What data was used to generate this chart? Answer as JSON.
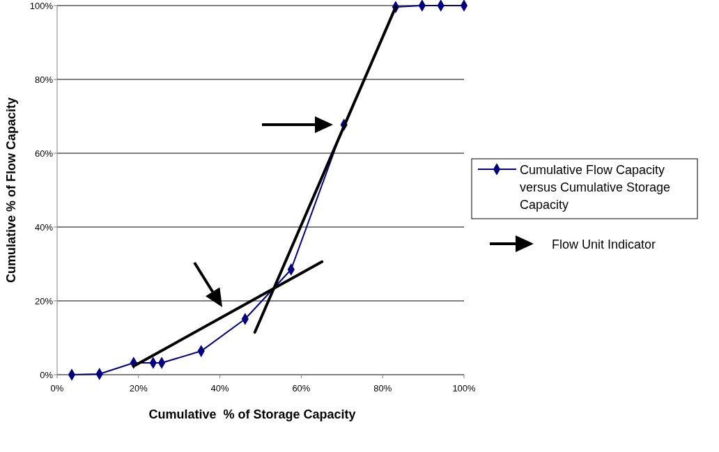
{
  "chart_data": {
    "type": "line",
    "xlabel": "Cumulative  % of Storage Capacity",
    "ylabel": "Cumulative % of Flow Capacity",
    "x": [
      3.6,
      10.4,
      18.8,
      23.6,
      25.7,
      35.4,
      46.2,
      57.5,
      70.5,
      83.2,
      89.7,
      94.3,
      100
    ],
    "series": [
      {
        "name": "Cumulative Flow Capacity versus Cumulative Storage Capacity",
        "color": "#000080",
        "values": [
          0,
          0.2,
          3.2,
          3.2,
          3.2,
          6.4,
          15.1,
          28.5,
          67.7,
          99.6,
          100,
          100,
          100
        ]
      },
      {
        "color": "#000000",
        "x": [
          18.8,
          65.1
        ],
        "values": [
          2.3,
          30.6
        ],
        "marker": "none"
      },
      {
        "color": "#000000",
        "x": [
          48.6,
          83.2
        ],
        "values": [
          11.5,
          99.6
        ],
        "marker": "none"
      }
    ],
    "xlim": [
      0,
      100
    ],
    "ylim": [
      0,
      100
    ],
    "xticks": [
      {
        "value": 0,
        "label": "0%"
      },
      {
        "value": 20,
        "label": "20%"
      },
      {
        "value": 40,
        "label": "40%"
      },
      {
        "value": 60,
        "label": "60%"
      },
      {
        "value": 80,
        "label": "80%"
      },
      {
        "value": 100,
        "label": "100%"
      }
    ],
    "yticks": [
      {
        "value": 0,
        "label": "0%"
      },
      {
        "value": 20,
        "label": "20%"
      },
      {
        "value": 40,
        "label": "40%"
      },
      {
        "value": 60,
        "label": "60%"
      },
      {
        "value": 80,
        "label": "80%"
      },
      {
        "value": 100,
        "label": "100%"
      }
    ],
    "grid": "y",
    "legend": "right",
    "marker": "diamond",
    "line_style": "solid",
    "annotations": [
      "Flow Unit Indicator"
    ]
  }
}
